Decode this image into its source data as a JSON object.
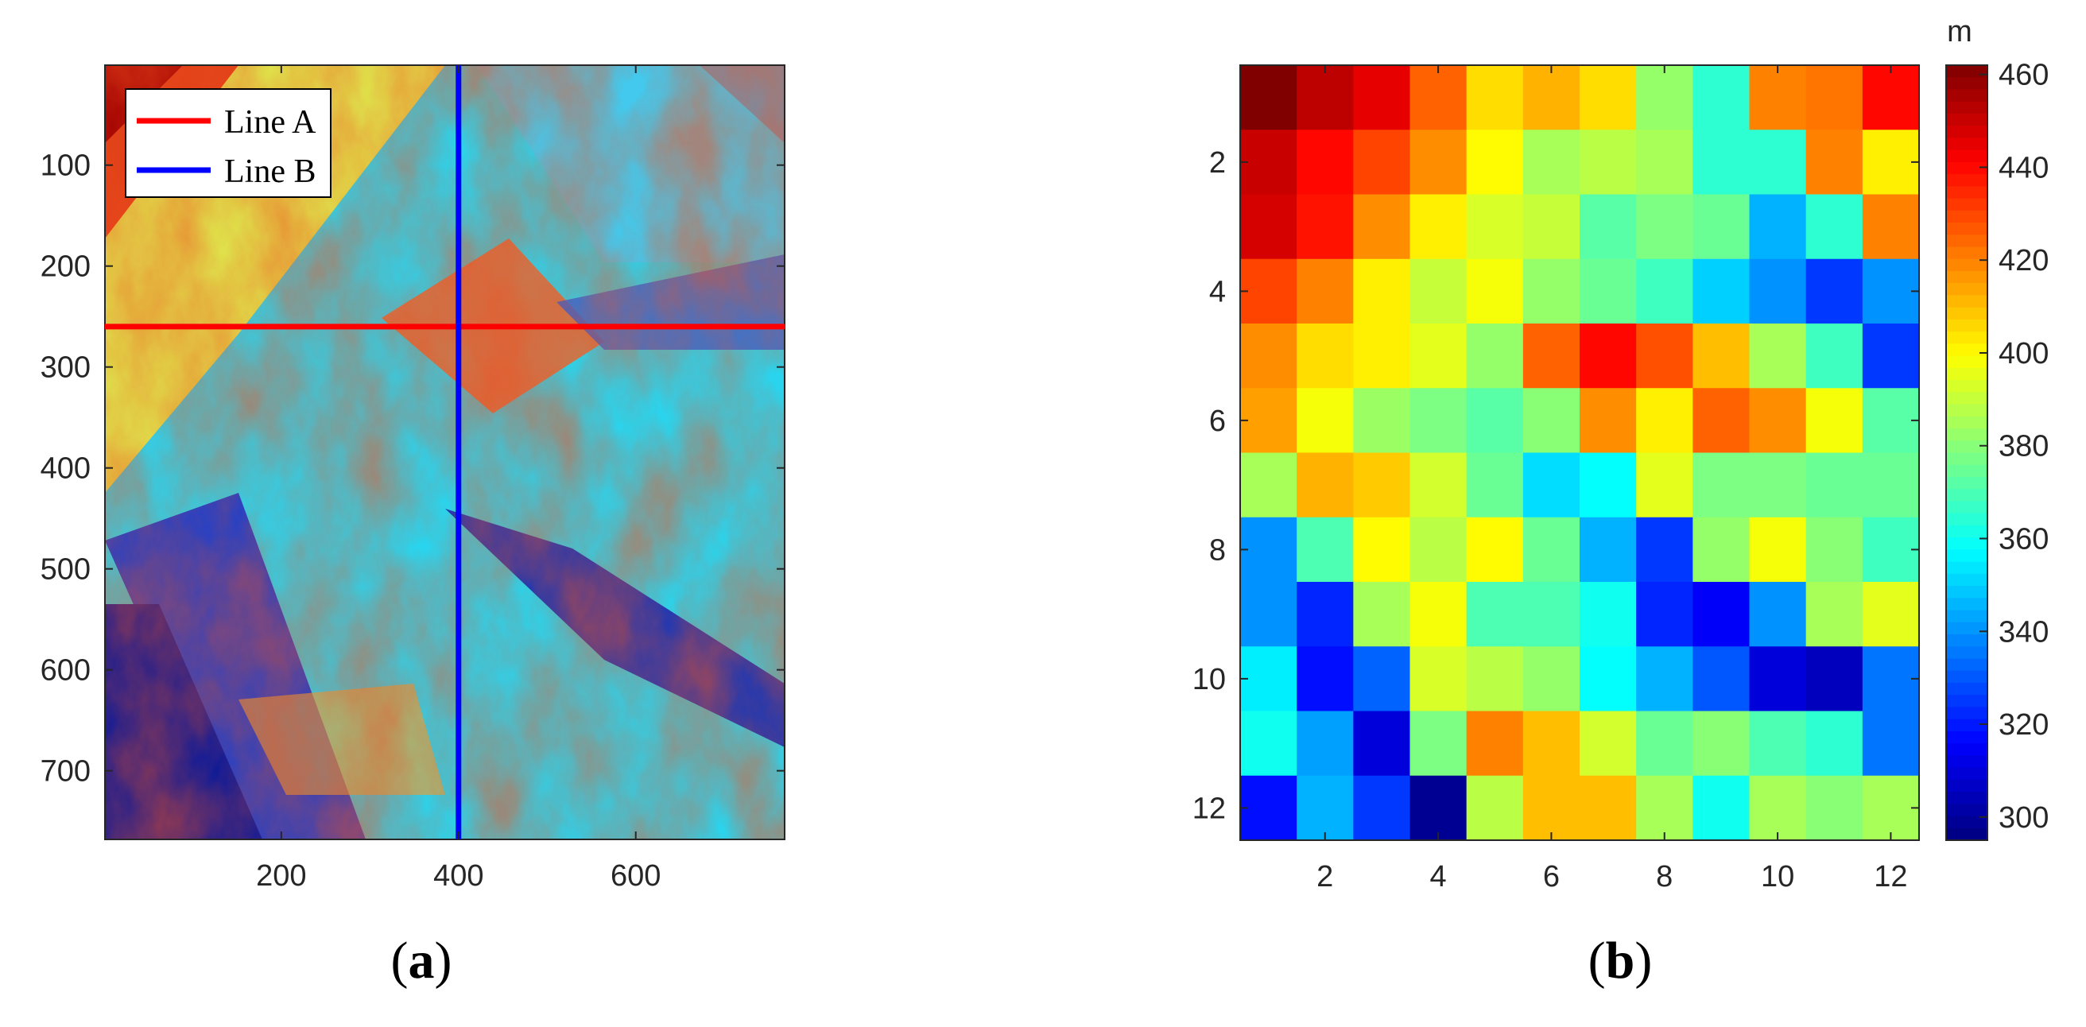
{
  "chart_data": [
    {
      "type": "heatmap",
      "panel_label": {
        "open": "(",
        "letter": "a",
        "close": ")"
      },
      "colormap": "jet",
      "xlim": [
        1,
        768
      ],
      "ylim": [
        1,
        768
      ],
      "y_reversed": true,
      "xticks": [
        200,
        400,
        600
      ],
      "yticks": [
        100,
        200,
        300,
        400,
        500,
        600,
        700
      ],
      "lines": [
        {
          "name": "Line A",
          "orientation": "horizontal",
          "y": 260,
          "color": "#ff0000"
        },
        {
          "name": "Line B",
          "orientation": "vertical",
          "x": 400,
          "color": "#0000ff"
        }
      ],
      "legend_position": "top-left"
    },
    {
      "type": "heatmap",
      "panel_label": {
        "open": "(",
        "letter": "b",
        "close": ")"
      },
      "colormap": "jet",
      "xlim": [
        0.5,
        12.5
      ],
      "ylim": [
        0.5,
        12.5
      ],
      "y_reversed": true,
      "xticks": [
        2,
        4,
        6,
        8,
        10,
        12
      ],
      "yticks": [
        2,
        4,
        6,
        8,
        10,
        12
      ],
      "values": [
        [
          462,
          452,
          445,
          425,
          405,
          412,
          405,
          382,
          365,
          420,
          422,
          440
        ],
        [
          450,
          440,
          430,
          418,
          400,
          385,
          388,
          385,
          365,
          365,
          420,
          402
        ],
        [
          448,
          438,
          418,
          402,
          393,
          390,
          372,
          378,
          375,
          345,
          365,
          420
        ],
        [
          430,
          420,
          402,
          390,
          398,
          382,
          375,
          368,
          350,
          340,
          325,
          340
        ],
        [
          418,
          405,
          402,
          395,
          382,
          425,
          440,
          428,
          410,
          385,
          368,
          325
        ],
        [
          415,
          398,
          383,
          378,
          372,
          380,
          418,
          402,
          425,
          418,
          398,
          372
        ],
        [
          385,
          412,
          408,
          392,
          375,
          352,
          358,
          395,
          378,
          378,
          375,
          375
        ],
        [
          340,
          370,
          400,
          388,
          400,
          375,
          345,
          325,
          382,
          398,
          380,
          368
        ],
        [
          340,
          322,
          385,
          398,
          370,
          370,
          360,
          322,
          315,
          340,
          385,
          395
        ],
        [
          355,
          318,
          332,
          393,
          388,
          382,
          358,
          345,
          330,
          310,
          305,
          335
        ],
        [
          360,
          342,
          310,
          378,
          420,
          410,
          392,
          375,
          380,
          370,
          365,
          335
        ],
        [
          318,
          345,
          325,
          298,
          388,
          410,
          410,
          385,
          360,
          385,
          380,
          385
        ]
      ],
      "colorbar": {
        "label": "m",
        "min": 295,
        "max": 462,
        "ticks": [
          300,
          320,
          340,
          360,
          380,
          400,
          420,
          440,
          460
        ]
      }
    }
  ]
}
